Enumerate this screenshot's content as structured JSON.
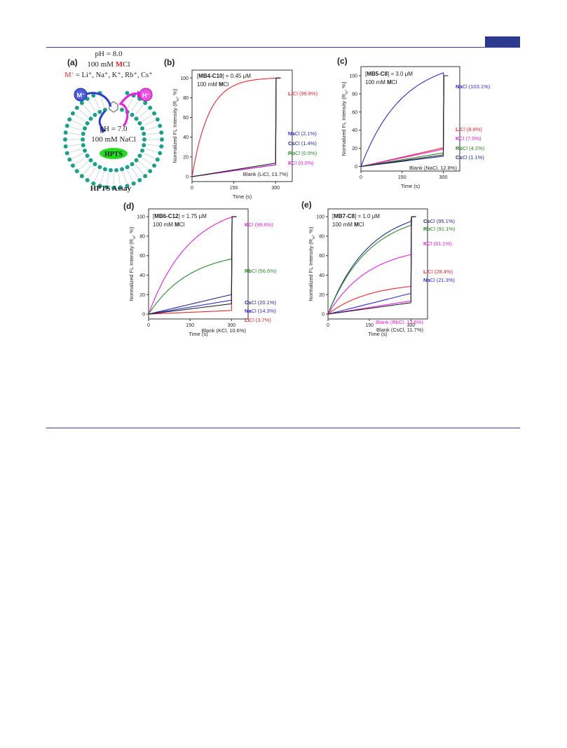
{
  "page": {
    "colors": {
      "rule": "#3a3f8f",
      "accent_block": "#2b3a8c"
    }
  },
  "panel_a": {
    "letter": "(a)",
    "line1": "pH = 8.0",
    "line2_pre": "100 mM ",
    "line2_M": "M",
    "line2_post": "Cl",
    "line3_pre": "M",
    "line3_sup": "+",
    "line3_post": " = Li⁺, Na⁺, K⁺, Rb⁺, Cs⁺",
    "m_label": "M",
    "m_sup": "+",
    "h_label": "H",
    "h_sup": "+",
    "inner1": "pH = 7.0",
    "inner2": "100 mM NaCl",
    "hpts": "HPTS",
    "caption": "HPTS Assay"
  },
  "colors": {
    "Li": "#e8262a",
    "Na": "#2b2bdc",
    "K": "#e81ee3",
    "Rb": "#2a8a2a",
    "Cs": "#1f2a8c",
    "Blank": "#222222",
    "bead": "#1aa18a",
    "hpts": "#22dd22"
  },
  "chart_data": [
    {
      "panel": "(b)",
      "type": "line",
      "conc_name": "MB4-C10",
      "conc_value": "= 0.45 μM",
      "salt_pre": "100 mM ",
      "salt_M": "M",
      "salt_post": "Cl",
      "xlabel": "Time (s)",
      "ylabel": "Normalized FL Intensity (R",
      "ylabel_sub": "M",
      "ylabel_post": ", %)",
      "xlim": [
        0,
        360
      ],
      "ylim": [
        -5,
        108
      ],
      "xticks": [
        0,
        150,
        300
      ],
      "yticks": [
        0,
        20,
        40,
        60,
        80,
        100
      ],
      "series": [
        {
          "key": "Li",
          "ion": "Li",
          "label": "Cl (99.8%)",
          "final": 99.8
        },
        {
          "key": "Na",
          "ion": "Na",
          "label": "Cl (2.1%)",
          "final": 2.1
        },
        {
          "key": "Cs",
          "ion": "Cs",
          "label": "Cl (1.4%)",
          "final": 1.4
        },
        {
          "key": "Rb",
          "ion": "Rb",
          "label": "Cl (0.9%)",
          "final": 0.9
        },
        {
          "key": "K",
          "ion": "K",
          "label": "Cl (0.0%)",
          "final": 0.0
        },
        {
          "key": "Blank",
          "ion": "",
          "label": "Blank (LiCl, 13.7%)",
          "final": 13.7
        }
      ]
    },
    {
      "panel": "(c)",
      "type": "line",
      "conc_name": "MB5-C8",
      "conc_value": "= 3.0 μM",
      "salt_pre": "100 mM ",
      "salt_M": "M",
      "salt_post": "Cl",
      "xlabel": "Time (s)",
      "ylabel": "Normalized FL Intensity (R",
      "ylabel_sub": "M",
      "ylabel_post": ", %)",
      "xlim": [
        0,
        360
      ],
      "ylim": [
        -5,
        110
      ],
      "xticks": [
        0,
        150,
        300
      ],
      "yticks": [
        0,
        20,
        40,
        60,
        80,
        100
      ],
      "series": [
        {
          "key": "Na",
          "ion": "Na",
          "label": "Cl (103.1%)",
          "final": 103.1
        },
        {
          "key": "Li",
          "ion": "Li",
          "label": "Cl (8.8%)",
          "final": 8.8
        },
        {
          "key": "K",
          "ion": "K",
          "label": "Cl (7.5%)",
          "final": 7.5
        },
        {
          "key": "Rb",
          "ion": "Rb",
          "label": "Cl (4.2%)",
          "final": 4.2
        },
        {
          "key": "Cs",
          "ion": "Cs",
          "label": "Cl (1.1%)",
          "final": 1.1
        },
        {
          "key": "Blank",
          "ion": "",
          "label": "Blank (NaCl, 12.8%)",
          "final": 12.8
        }
      ]
    },
    {
      "panel": "(d)",
      "type": "line",
      "conc_name": "MB6-C12",
      "conc_value": "= 1.75 μM",
      "salt_pre": "100 mM ",
      "salt_M": "M",
      "salt_post": "Cl",
      "xlabel": "Time (s)",
      "ylabel": "Normalized FL Intensity (R",
      "ylabel_sub": "M",
      "ylabel_post": ", %)",
      "xlim": [
        0,
        360
      ],
      "ylim": [
        -5,
        108
      ],
      "xticks": [
        0,
        150,
        300
      ],
      "yticks": [
        0,
        20,
        40,
        60,
        80,
        100
      ],
      "series": [
        {
          "key": "K",
          "ion": "K",
          "label": "Cl (99.6%)",
          "final": 99.6
        },
        {
          "key": "Rb",
          "ion": "Rb",
          "label": "Cl (56.6%)",
          "final": 56.6
        },
        {
          "key": "Cs",
          "ion": "Cs",
          "label": "Cl (20.1%)",
          "final": 20.1
        },
        {
          "key": "Na",
          "ion": "Na",
          "label": "Cl (14.3%)",
          "final": 14.3
        },
        {
          "key": "Li",
          "ion": "Li",
          "label": "Cl (3.7%)",
          "final": 3.7
        },
        {
          "key": "Blank",
          "ion": "",
          "label": "Blank (KCl, 10.6%)",
          "final": 10.6
        }
      ]
    },
    {
      "panel": "(e)",
      "type": "line",
      "conc_name": "MB7-C8",
      "conc_value": "= 1.0 μM",
      "salt_pre": "100 mM ",
      "salt_M": "M",
      "salt_post": "Cl",
      "xlabel": "Time (s)",
      "ylabel": "Normalized FL Intensity (R",
      "ylabel_sub": "M",
      "ylabel_post": ", %)",
      "xlim": [
        0,
        360
      ],
      "ylim": [
        -5,
        108
      ],
      "xticks": [
        0,
        150,
        300
      ],
      "yticks": [
        0,
        20,
        40,
        60,
        80,
        100
      ],
      "series": [
        {
          "key": "Cs",
          "ion": "Cs",
          "label": "Cl (95.1%)",
          "final": 95.1
        },
        {
          "key": "Rb",
          "ion": "Rb",
          "label": "Cl (91.1%)",
          "final": 91.1
        },
        {
          "key": "K",
          "ion": "K",
          "label": "Cl (61.1%)",
          "final": 61.1
        },
        {
          "key": "Li",
          "ion": "Li",
          "label": "Cl (28.4%)",
          "final": 28.4
        },
        {
          "key": "Na",
          "ion": "Na",
          "label": "Cl (21.3%)",
          "final": 21.3
        },
        {
          "key": "BlankRb",
          "ion": "",
          "label": "Blank (RbCl, 13.6%)",
          "final": 13.6
        },
        {
          "key": "Blank",
          "ion": "",
          "label": "Blank (CsCl, 11.7%)",
          "final": 11.7
        }
      ]
    }
  ]
}
